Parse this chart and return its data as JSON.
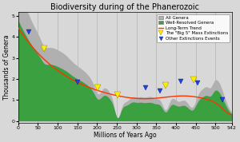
{
  "title": "Biodiversity during of the Phanerozoic",
  "xlabel": "Millions of Years Ago",
  "ylabel": "Thousands of Genera",
  "xlim": [
    0,
    542
  ],
  "ylim": [
    -0.1,
    5.2
  ],
  "yticks": [
    0,
    1,
    2,
    3,
    4,
    5
  ],
  "xticks": [
    0,
    50,
    100,
    150,
    200,
    250,
    300,
    350,
    400,
    450,
    500,
    542
  ],
  "bg_color": "#d8d8d8",
  "all_genera_color": "#b0b0b0",
  "well_resolved_color": "#3aa040",
  "trend_color": "#ff3300",
  "big5_color": "#ffee00",
  "other_color": "#2244dd",
  "big5_extinctions_x": [
    66,
    201,
    252,
    374,
    445
  ],
  "big5_extinctions_y": [
    3.45,
    1.6,
    1.25,
    1.7,
    1.95
  ],
  "other_extinctions_x": [
    27,
    150,
    323,
    360,
    412,
    455,
    517
  ],
  "other_extinctions_y": [
    4.25,
    1.85,
    1.6,
    1.45,
    1.9,
    1.8,
    1.0
  ],
  "legend_labels": [
    "All Genera",
    "Well-Resolved Genera",
    "Long-Term Trend",
    "The \"Big 5\" Mass Extinctions",
    "Other Extinctions Events"
  ]
}
